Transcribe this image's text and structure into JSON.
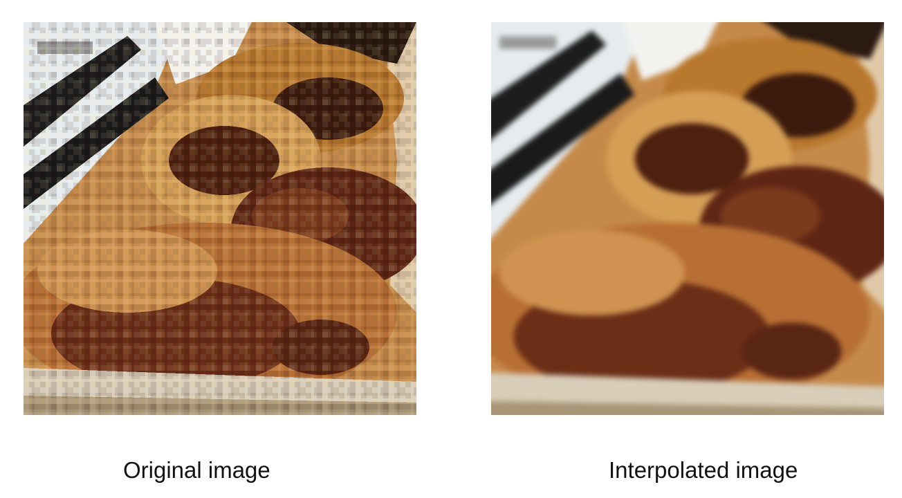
{
  "captions": {
    "left": "Original image",
    "right": "Interpolated image"
  },
  "images": {
    "left": {
      "content": "pixelated close-up of fried chicken pieces on a plate with a striped cloth"
    },
    "right": {
      "content": "smoothed close-up of fried chicken pieces on a plate with a striped cloth"
    }
  },
  "colors": {
    "background": "#ffffff",
    "caption_text": "#111111",
    "food_light": "#d9a25a",
    "food_mid": "#b06a2c",
    "food_dark": "#4a1e10",
    "cloth_light": "#e9eef0",
    "cloth_dark": "#1c1c1c"
  }
}
